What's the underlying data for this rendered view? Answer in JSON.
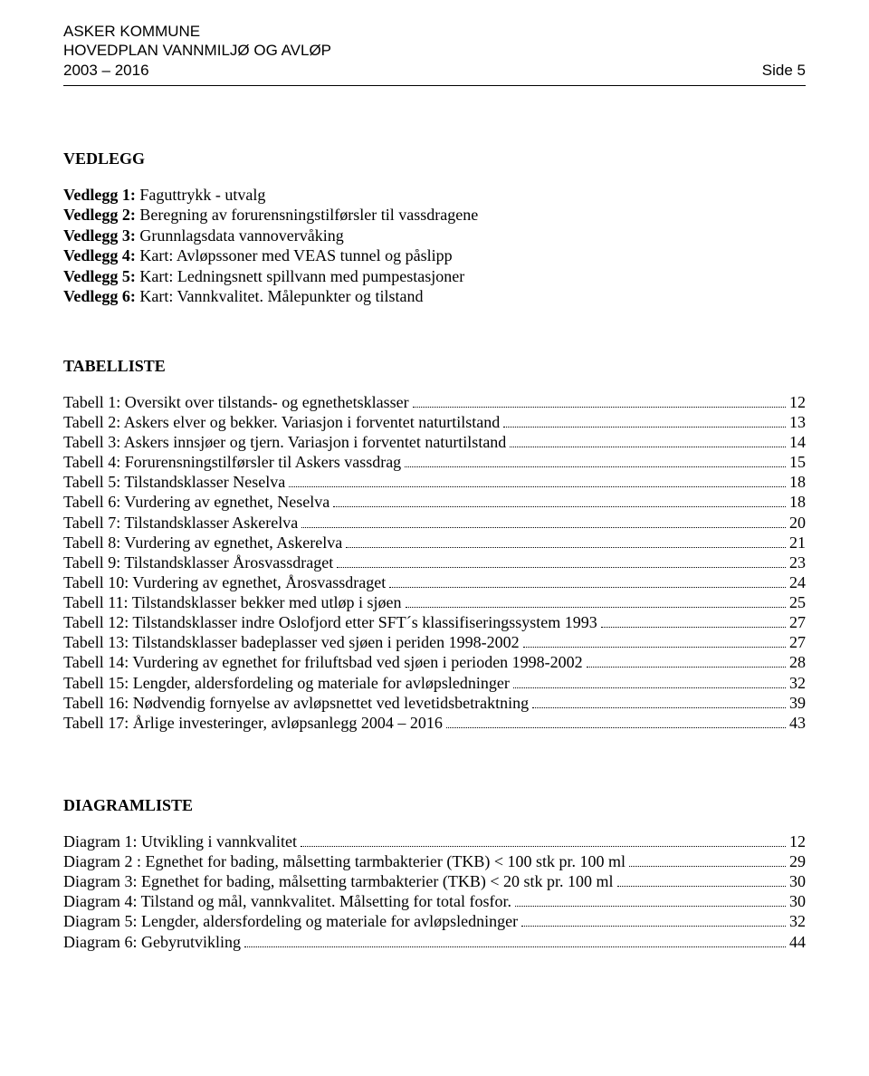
{
  "header": {
    "line1": "ASKER KOMMUNE",
    "line2": "HOVEDPLAN VANNMILJØ OG AVLØP",
    "line3_left": "2003 – 2016",
    "line3_right": "Side 5"
  },
  "vedlegg": {
    "title": "VEDLEGG",
    "items": [
      {
        "label": "Vedlegg 1:",
        "text": " Faguttrykk - utvalg"
      },
      {
        "label": "Vedlegg 2:",
        "text": " Beregning av forurensningstilførsler til vassdragene"
      },
      {
        "label": "Vedlegg 3:",
        "text": " Grunnlagsdata vannovervåking"
      },
      {
        "label": "Vedlegg 4:",
        "text": " Kart: Avløpssoner med VEAS tunnel og påslipp"
      },
      {
        "label": "Vedlegg 5:",
        "text": " Kart: Ledningsnett spillvann med pumpestasjoner"
      },
      {
        "label": "Vedlegg 6:",
        "text": " Kart: Vannkvalitet. Målepunkter og tilstand"
      }
    ]
  },
  "tables": {
    "title": "TABELLISTE",
    "items": [
      {
        "label": "Tabell 1: Oversikt over tilstands- og egnethetsklasser",
        "page": "12"
      },
      {
        "label": "Tabell 2: Askers elver og bekker. Variasjon i forventet naturtilstand",
        "page": "13"
      },
      {
        "label": "Tabell 3: Askers innsjøer og tjern. Variasjon i forventet naturtilstand",
        "page": "14"
      },
      {
        "label": "Tabell 4: Forurensningstilførsler til Askers vassdrag",
        "page": "15"
      },
      {
        "label": "Tabell 5: Tilstandsklasser Neselva",
        "page": "18"
      },
      {
        "label": "Tabell 6: Vurdering av egnethet, Neselva",
        "page": "18"
      },
      {
        "label": "Tabell 7: Tilstandsklasser Askerelva",
        "page": "20"
      },
      {
        "label": "Tabell 8: Vurdering av egnethet, Askerelva",
        "page": "21"
      },
      {
        "label": "Tabell 9: Tilstandsklasser Årosvassdraget",
        "page": "23"
      },
      {
        "label": "Tabell 10: Vurdering av egnethet, Årosvassdraget",
        "page": "24"
      },
      {
        "label": "Tabell 11: Tilstandsklasser bekker med utløp i sjøen",
        "page": "25"
      },
      {
        "label": "Tabell 12: Tilstandsklasser indre Oslofjord etter SFT´s klassifiseringssystem 1993",
        "page": "27"
      },
      {
        "label": "Tabell 13: Tilstandsklasser badeplasser ved sjøen i periden 1998-2002",
        "page": "27"
      },
      {
        "label": "Tabell 14: Vurdering av egnethet for friluftsbad ved sjøen i perioden 1998-2002",
        "page": "28"
      },
      {
        "label": "Tabell 15: Lengder, aldersfordeling og materiale for avløpsledninger",
        "page": "32"
      },
      {
        "label": "Tabell 16: Nødvendig fornyelse av avløpsnettet ved levetidsbetraktning",
        "page": "39"
      },
      {
        "label": "Tabell 17: Årlige investeringer, avløpsanlegg 2004 – 2016",
        "page": "43"
      }
    ]
  },
  "diagrams": {
    "title": "DIAGRAMLISTE",
    "items": [
      {
        "label": "Diagram 1: Utvikling i vannkvalitet",
        "page": "12"
      },
      {
        "label": "Diagram 2 : Egnethet for bading, målsetting tarmbakterier (TKB) < 100 stk pr. 100 ml",
        "page": "29"
      },
      {
        "label": "Diagram 3: Egnethet for bading, målsetting tarmbakterier (TKB) < 20 stk pr. 100 ml",
        "page": "30"
      },
      {
        "label": "Diagram 4: Tilstand og mål, vannkvalitet. Målsetting for total fosfor. ",
        "page": "30"
      },
      {
        "label": "Diagram 5: Lengder, aldersfordeling og materiale for avløpsledninger",
        "page": "32"
      },
      {
        "label": "Diagram 6: Gebyrutvikling",
        "page": "44"
      }
    ]
  }
}
